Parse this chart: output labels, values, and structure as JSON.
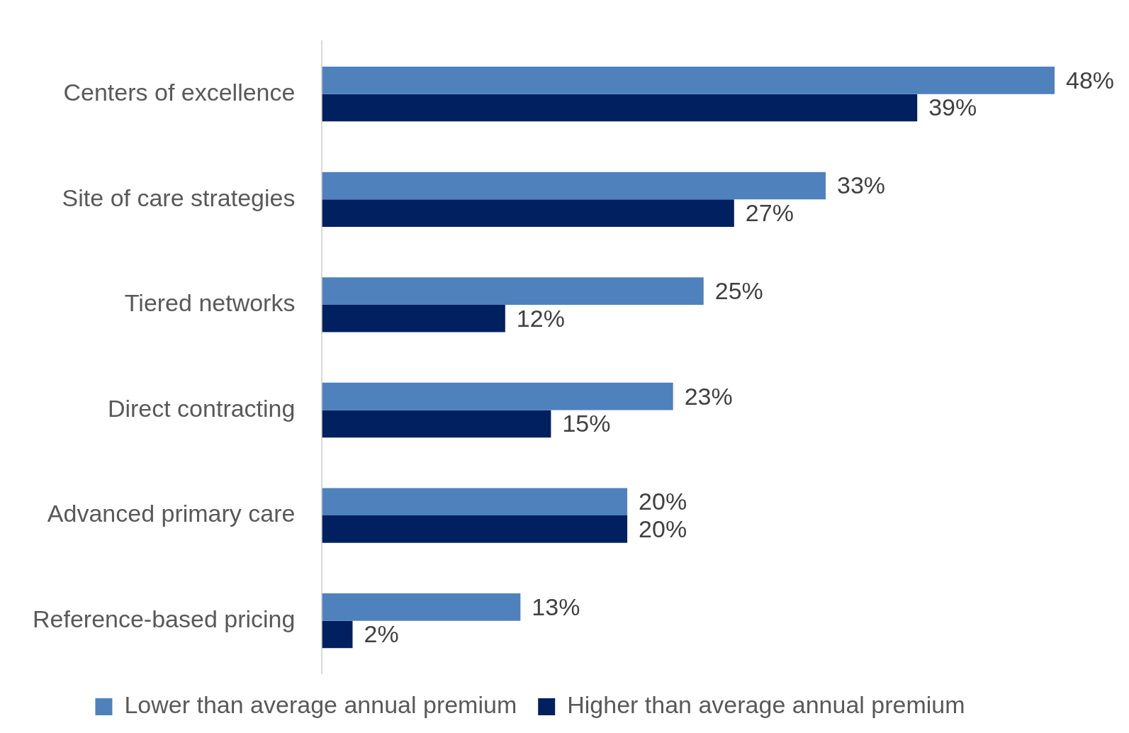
{
  "chart_data": {
    "type": "bar",
    "orientation": "horizontal",
    "categories": [
      "Centers of excellence",
      "Site of care strategies",
      "Tiered networks",
      "Direct contracting",
      "Advanced primary care",
      "Reference-based pricing"
    ],
    "series": [
      {
        "name": "Lower than average annual premium",
        "color": "#4f81bd",
        "values": [
          48,
          33,
          25,
          23,
          20,
          13
        ],
        "value_labels": [
          "48%",
          "33%",
          "25%",
          "23%",
          "20%",
          "13%"
        ]
      },
      {
        "name": "Higher than average annual premium",
        "color": "#002060",
        "values": [
          39,
          27,
          12,
          15,
          20,
          2
        ],
        "value_labels": [
          "39%",
          "27%",
          "12%",
          "15%",
          "20%",
          "2%"
        ]
      }
    ],
    "grid": false,
    "legend": "bottom"
  }
}
